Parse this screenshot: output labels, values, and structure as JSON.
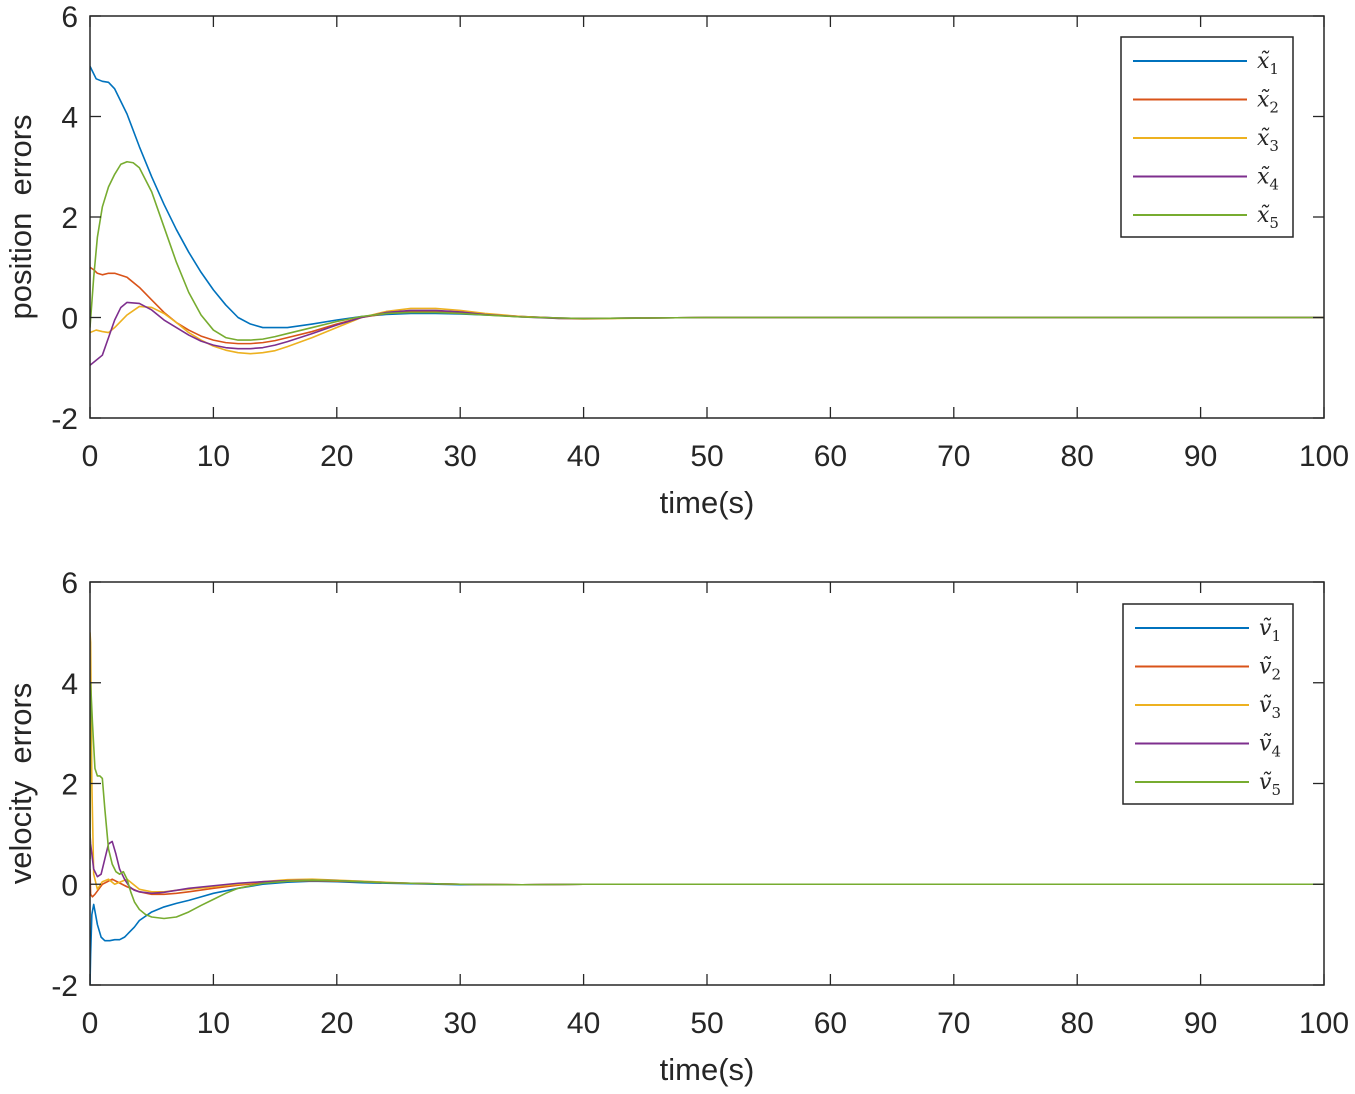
{
  "chart_data": [
    {
      "type": "line",
      "xlabel": "time(s)",
      "ylabel": "position  errors",
      "xlim": [
        0,
        100
      ],
      "ylim": [
        -2,
        6
      ],
      "xticks": [
        0,
        10,
        20,
        30,
        40,
        50,
        60,
        70,
        80,
        90,
        100
      ],
      "yticks": [
        -2,
        0,
        2,
        4,
        6
      ],
      "xtick_labels": [
        "0",
        "10",
        "20",
        "30",
        "40",
        "50",
        "60",
        "70",
        "80",
        "90",
        "100"
      ],
      "ytick_labels": [
        "-2",
        "0",
        "2",
        "4",
        "6"
      ],
      "legend_position": "top-right",
      "grid": false,
      "series": [
        {
          "name": "x̃",
          "sub": "1",
          "color": "#0072BD",
          "x": [
            0,
            0.5,
            1,
            1.5,
            2,
            3,
            4,
            5,
            6,
            7,
            8,
            9,
            10,
            11,
            12,
            13,
            14,
            16,
            18,
            20,
            22,
            24,
            26,
            28,
            30,
            32,
            35,
            38,
            40,
            45,
            50,
            60,
            70,
            80,
            90,
            100
          ],
          "y": [
            5.0,
            4.75,
            4.7,
            4.68,
            4.55,
            4.05,
            3.4,
            2.8,
            2.25,
            1.75,
            1.3,
            0.9,
            0.55,
            0.25,
            0.0,
            -0.13,
            -0.2,
            -0.2,
            -0.13,
            -0.05,
            0.02,
            0.06,
            0.08,
            0.08,
            0.07,
            0.05,
            0.02,
            -0.01,
            -0.02,
            -0.01,
            0.0,
            0.0,
            0.0,
            0.0,
            0.0,
            0.0
          ]
        },
        {
          "name": "x̃",
          "sub": "2",
          "color": "#D95319",
          "x": [
            0,
            0.3,
            0.6,
            1,
            1.5,
            2,
            3,
            4,
            5,
            6,
            7,
            8,
            9,
            10,
            11,
            12,
            13,
            14,
            15,
            16,
            18,
            20,
            22,
            24,
            26,
            28,
            30,
            32,
            35,
            38,
            40,
            45,
            50,
            60,
            70,
            80,
            90,
            100
          ],
          "y": [
            1.0,
            0.95,
            0.88,
            0.85,
            0.88,
            0.88,
            0.8,
            0.6,
            0.35,
            0.1,
            -0.1,
            -0.25,
            -0.37,
            -0.45,
            -0.5,
            -0.52,
            -0.52,
            -0.5,
            -0.46,
            -0.4,
            -0.28,
            -0.13,
            0.0,
            0.08,
            0.12,
            0.12,
            0.1,
            0.06,
            0.02,
            -0.01,
            -0.02,
            -0.01,
            0.0,
            0.0,
            0.0,
            0.0,
            0.0,
            0.0
          ]
        },
        {
          "name": "x̃",
          "sub": "3",
          "color": "#EDB120",
          "x": [
            0,
            0.5,
            1,
            1.5,
            2,
            3,
            4,
            5,
            6,
            7,
            8,
            9,
            10,
            11,
            12,
            13,
            14,
            15,
            16,
            18,
            20,
            22,
            24,
            26,
            28,
            30,
            32,
            35,
            38,
            40,
            45,
            50,
            60,
            70,
            80,
            90,
            100
          ],
          "y": [
            -0.3,
            -0.25,
            -0.28,
            -0.3,
            -0.2,
            0.05,
            0.22,
            0.2,
            0.08,
            -0.1,
            -0.3,
            -0.45,
            -0.57,
            -0.65,
            -0.7,
            -0.72,
            -0.7,
            -0.66,
            -0.58,
            -0.4,
            -0.2,
            0.0,
            0.12,
            0.18,
            0.18,
            0.14,
            0.08,
            0.02,
            -0.02,
            -0.03,
            -0.01,
            0.0,
            0.0,
            0.0,
            0.0,
            0.0,
            0.0
          ]
        },
        {
          "name": "x̃",
          "sub": "4",
          "color": "#7E2F8E",
          "x": [
            0,
            0.5,
            1,
            1.5,
            2,
            2.5,
            3,
            4,
            5,
            6,
            7,
            8,
            9,
            10,
            11,
            12,
            13,
            14,
            15,
            16,
            18,
            20,
            22,
            24,
            26,
            28,
            30,
            32,
            35,
            38,
            40,
            45,
            50,
            60,
            70,
            80,
            90,
            100
          ],
          "y": [
            -0.95,
            -0.85,
            -0.75,
            -0.4,
            -0.05,
            0.2,
            0.3,
            0.28,
            0.15,
            -0.05,
            -0.2,
            -0.35,
            -0.47,
            -0.55,
            -0.6,
            -0.62,
            -0.62,
            -0.6,
            -0.55,
            -0.48,
            -0.32,
            -0.15,
            0.0,
            0.1,
            0.14,
            0.14,
            0.11,
            0.06,
            0.01,
            -0.02,
            -0.02,
            -0.01,
            0.0,
            0.0,
            0.0,
            0.0,
            0.0,
            0.0
          ]
        },
        {
          "name": "x̃",
          "sub": "5",
          "color": "#77AC30",
          "x": [
            0,
            0.3,
            0.6,
            1,
            1.5,
            2,
            2.5,
            3,
            3.5,
            4,
            5,
            6,
            7,
            8,
            9,
            10,
            11,
            12,
            13,
            14,
            15,
            16,
            18,
            20,
            22,
            24,
            26,
            28,
            30,
            32,
            35,
            38,
            40,
            45,
            50,
            60,
            70,
            80,
            90,
            100
          ],
          "y": [
            -0.2,
            0.8,
            1.6,
            2.2,
            2.6,
            2.85,
            3.05,
            3.1,
            3.08,
            2.98,
            2.5,
            1.8,
            1.1,
            0.5,
            0.05,
            -0.25,
            -0.4,
            -0.45,
            -0.45,
            -0.43,
            -0.38,
            -0.32,
            -0.2,
            -0.08,
            0.02,
            0.08,
            0.1,
            0.1,
            0.08,
            0.05,
            0.01,
            -0.01,
            -0.02,
            -0.01,
            0.0,
            0.0,
            0.0,
            0.0,
            0.0,
            0.0
          ]
        }
      ]
    },
    {
      "type": "line",
      "xlabel": "time(s)",
      "ylabel": "velocity  errors",
      "xlim": [
        0,
        100
      ],
      "ylim": [
        -2,
        6
      ],
      "xticks": [
        0,
        10,
        20,
        30,
        40,
        50,
        60,
        70,
        80,
        90,
        100
      ],
      "yticks": [
        -2,
        0,
        2,
        4,
        6
      ],
      "xtick_labels": [
        "0",
        "10",
        "20",
        "30",
        "40",
        "50",
        "60",
        "70",
        "80",
        "90",
        "100"
      ],
      "ytick_labels": [
        "-2",
        "0",
        "2",
        "4",
        "6"
      ],
      "legend_position": "top-right",
      "grid": false,
      "series": [
        {
          "name": "ṽ",
          "sub": "1",
          "color": "#0072BD",
          "x": [
            0,
            0.05,
            0.15,
            0.3,
            0.6,
            0.9,
            1.2,
            1.6,
            2.0,
            2.4,
            2.8,
            3.2,
            3.6,
            4,
            5,
            6,
            7,
            8,
            9,
            10,
            12,
            14,
            16,
            18,
            20,
            22,
            24,
            26,
            28,
            30,
            35,
            40,
            50,
            60,
            70,
            80,
            90,
            100
          ],
          "y": [
            -2.0,
            -1.4,
            -0.6,
            -0.4,
            -0.8,
            -1.05,
            -1.12,
            -1.12,
            -1.1,
            -1.1,
            -1.05,
            -0.95,
            -0.85,
            -0.72,
            -0.55,
            -0.45,
            -0.38,
            -0.32,
            -0.25,
            -0.18,
            -0.08,
            0.0,
            0.04,
            0.06,
            0.05,
            0.03,
            0.02,
            0.01,
            0.0,
            -0.01,
            -0.01,
            0.0,
            0.0,
            0.0,
            0.0,
            0.0,
            0.0,
            0.0
          ]
        },
        {
          "name": "ṽ",
          "sub": "2",
          "color": "#D95319",
          "x": [
            0,
            0.05,
            0.2,
            0.4,
            0.7,
            1.0,
            1.4,
            1.8,
            2.2,
            2.6,
            3.0,
            3.5,
            4,
            5,
            6,
            7,
            8,
            10,
            12,
            14,
            16,
            18,
            20,
            22,
            24,
            26,
            28,
            30,
            35,
            40,
            50,
            60,
            70,
            80,
            90,
            100
          ],
          "y": [
            0.3,
            -0.2,
            -0.25,
            -0.2,
            -0.1,
            0.0,
            0.05,
            0.1,
            0.05,
            0.0,
            -0.05,
            -0.1,
            -0.15,
            -0.2,
            -0.2,
            -0.18,
            -0.15,
            -0.08,
            -0.02,
            0.03,
            0.06,
            0.07,
            0.06,
            0.05,
            0.03,
            0.02,
            0.01,
            0.0,
            -0.01,
            0.0,
            0.0,
            0.0,
            0.0,
            0.0,
            0.0,
            0.0
          ]
        },
        {
          "name": "ṽ",
          "sub": "3",
          "color": "#EDB120",
          "x": [
            0,
            0.05,
            0.15,
            0.3,
            0.6,
            1.0,
            1.5,
            2.0,
            2.5,
            3.0,
            3.5,
            4,
            5,
            6,
            7,
            8,
            10,
            12,
            14,
            16,
            18,
            20,
            22,
            24,
            26,
            28,
            30,
            35,
            40,
            50,
            60,
            70,
            80,
            90,
            100
          ],
          "y": [
            5.0,
            4.8,
            2.0,
            0.2,
            -0.1,
            0.05,
            0.1,
            0.0,
            0.05,
            0.1,
            0.0,
            -0.1,
            -0.15,
            -0.15,
            -0.12,
            -0.1,
            -0.05,
            0.0,
            0.05,
            0.09,
            0.1,
            0.08,
            0.06,
            0.04,
            0.02,
            0.01,
            0.0,
            -0.01,
            0.0,
            0.0,
            0.0,
            0.0,
            0.0,
            0.0,
            0.0
          ]
        },
        {
          "name": "ṽ",
          "sub": "4",
          "color": "#7E2F8E",
          "x": [
            0,
            0.05,
            0.3,
            0.6,
            0.9,
            1.2,
            1.5,
            1.8,
            2.1,
            2.4,
            2.8,
            3.2,
            3.6,
            4,
            5,
            6,
            7,
            8,
            10,
            12,
            14,
            16,
            18,
            20,
            22,
            24,
            26,
            28,
            30,
            35,
            40,
            50,
            60,
            70,
            80,
            90,
            100
          ],
          "y": [
            1.0,
            0.8,
            0.3,
            0.15,
            0.2,
            0.5,
            0.8,
            0.85,
            0.6,
            0.3,
            0.1,
            -0.05,
            -0.12,
            -0.15,
            -0.18,
            -0.16,
            -0.12,
            -0.08,
            -0.03,
            0.02,
            0.05,
            0.07,
            0.08,
            0.07,
            0.05,
            0.03,
            0.02,
            0.01,
            0.0,
            -0.01,
            0.0,
            0.0,
            0.0,
            0.0,
            0.0,
            0.0,
            0.0
          ]
        },
        {
          "name": "ṽ",
          "sub": "5",
          "color": "#77AC30",
          "x": [
            0,
            0.05,
            0.2,
            0.4,
            0.6,
            0.8,
            1.0,
            1.2,
            1.5,
            1.8,
            2.1,
            2.4,
            2.7,
            3.0,
            3.3,
            3.6,
            4,
            4.5,
            5,
            6,
            7,
            8,
            9,
            10,
            11,
            12,
            14,
            16,
            18,
            20,
            22,
            24,
            26,
            28,
            30,
            35,
            40,
            50,
            60,
            70,
            80,
            90,
            100
          ],
          "y": [
            0.5,
            4.0,
            3.2,
            2.3,
            2.15,
            2.15,
            2.1,
            1.5,
            0.7,
            0.4,
            0.25,
            0.2,
            0.25,
            0.1,
            -0.15,
            -0.35,
            -0.5,
            -0.6,
            -0.65,
            -0.68,
            -0.65,
            -0.55,
            -0.42,
            -0.3,
            -0.18,
            -0.08,
            0.02,
            0.06,
            0.08,
            0.07,
            0.05,
            0.03,
            0.02,
            0.01,
            0.0,
            -0.01,
            0.0,
            0.0,
            0.0,
            0.0,
            0.0,
            0.0,
            0.0
          ]
        }
      ]
    }
  ]
}
